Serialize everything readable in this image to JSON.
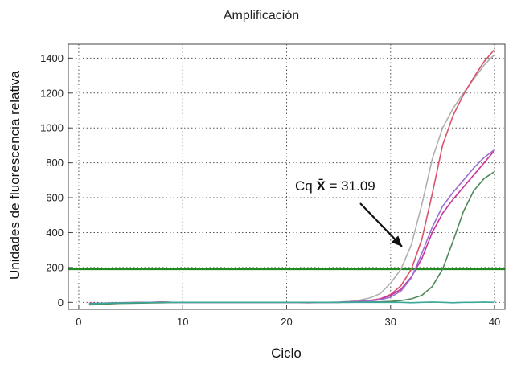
{
  "chart_data": {
    "type": "line",
    "title": "Amplificación",
    "xlabel": "Ciclo",
    "ylabel": "Unidades de fluorescencia relativa",
    "xlim": [
      -1,
      41
    ],
    "ylim": [
      -40,
      1480
    ],
    "xticks": [
      0,
      10,
      20,
      30,
      40
    ],
    "yticks": [
      0,
      200,
      400,
      600,
      800,
      1000,
      1200,
      1400
    ],
    "grid": true,
    "legend": "none",
    "threshold": {
      "value": 190,
      "color": "#1e8c1e"
    },
    "annotation": {
      "text_prefix": "Cq ",
      "text_symbol": "X̄",
      "text_value": " = 31.09",
      "point_x": 31.1,
      "point_y": 320
    },
    "series": [
      {
        "color": "#b0b0b0",
        "x": [
          1,
          2,
          3,
          4,
          5,
          6,
          7,
          8,
          9,
          10,
          11,
          12,
          13,
          14,
          15,
          16,
          17,
          18,
          19,
          20,
          21,
          22,
          23,
          24,
          25,
          26,
          27,
          28,
          29,
          30,
          31,
          32,
          33,
          34,
          35,
          36,
          37,
          38,
          39,
          40
        ],
        "y": [
          -15,
          -12,
          -8,
          -5,
          -4,
          -3,
          -2,
          -1,
          0,
          0,
          0,
          0,
          0,
          0,
          0,
          0,
          0,
          0,
          0,
          0,
          0,
          0,
          0,
          0,
          2,
          5,
          12,
          25,
          50,
          110,
          190,
          330,
          560,
          820,
          1000,
          1110,
          1200,
          1280,
          1360,
          1420
        ]
      },
      {
        "color": "#d9546a",
        "x": [
          1,
          2,
          3,
          4,
          5,
          6,
          7,
          8,
          9,
          10,
          11,
          12,
          13,
          14,
          15,
          16,
          17,
          18,
          19,
          20,
          21,
          22,
          23,
          24,
          25,
          26,
          27,
          28,
          29,
          30,
          31,
          32,
          33,
          34,
          35,
          36,
          37,
          38,
          39,
          40
        ],
        "y": [
          -10,
          -7,
          -5,
          -3,
          -2,
          -1,
          0,
          2,
          0,
          0,
          0,
          0,
          0,
          0,
          0,
          0,
          0,
          0,
          0,
          0,
          0,
          0,
          0,
          0,
          0,
          2,
          5,
          10,
          20,
          45,
          95,
          190,
          360,
          620,
          900,
          1070,
          1190,
          1290,
          1380,
          1450
        ]
      },
      {
        "color": "#cc3399",
        "x": [
          1,
          2,
          3,
          4,
          5,
          6,
          7,
          8,
          9,
          10,
          11,
          12,
          13,
          14,
          15,
          16,
          17,
          18,
          19,
          20,
          21,
          22,
          23,
          24,
          25,
          26,
          27,
          28,
          29,
          30,
          31,
          32,
          33,
          34,
          35,
          36,
          37,
          38,
          39,
          40
        ],
        "y": [
          -5,
          -5,
          -3,
          -2,
          -1,
          0,
          0,
          2,
          0,
          0,
          0,
          0,
          0,
          0,
          0,
          0,
          0,
          0,
          0,
          0,
          0,
          -2,
          0,
          0,
          0,
          2,
          5,
          10,
          20,
          40,
          75,
          145,
          250,
          400,
          510,
          590,
          660,
          730,
          800,
          870
        ]
      },
      {
        "color": "#9b6fd1",
        "x": [
          1,
          2,
          3,
          4,
          5,
          6,
          7,
          8,
          9,
          10,
          11,
          12,
          13,
          14,
          15,
          16,
          17,
          18,
          19,
          20,
          21,
          22,
          23,
          24,
          25,
          26,
          27,
          28,
          29,
          30,
          31,
          32,
          33,
          34,
          35,
          36,
          37,
          38,
          39,
          40
        ],
        "y": [
          -8,
          -6,
          -4,
          -3,
          -2,
          -1,
          0,
          0,
          0,
          0,
          0,
          0,
          0,
          0,
          0,
          0,
          0,
          0,
          0,
          0,
          0,
          0,
          0,
          0,
          0,
          2,
          4,
          8,
          15,
          30,
          65,
          140,
          280,
          430,
          550,
          630,
          700,
          770,
          830,
          875
        ]
      },
      {
        "color": "#4e8a57",
        "x": [
          1,
          2,
          3,
          4,
          5,
          6,
          7,
          8,
          9,
          10,
          11,
          12,
          13,
          14,
          15,
          16,
          17,
          18,
          19,
          20,
          21,
          22,
          23,
          24,
          25,
          26,
          27,
          28,
          29,
          30,
          31,
          32,
          33,
          34,
          35,
          36,
          37,
          38,
          39,
          40
        ],
        "y": [
          -12,
          -10,
          -8,
          -6,
          -5,
          -4,
          -3,
          -2,
          -1,
          0,
          0,
          0,
          0,
          0,
          0,
          0,
          0,
          0,
          0,
          0,
          0,
          0,
          0,
          0,
          0,
          0,
          1,
          2,
          3,
          5,
          10,
          20,
          40,
          90,
          190,
          350,
          520,
          640,
          710,
          750
        ]
      },
      {
        "color": "#3aa89a",
        "x": [
          1,
          2,
          3,
          4,
          5,
          6,
          7,
          8,
          9,
          10,
          11,
          12,
          13,
          14,
          15,
          16,
          17,
          18,
          19,
          20,
          21,
          22,
          23,
          24,
          25,
          26,
          27,
          28,
          29,
          30,
          31,
          32,
          33,
          34,
          35,
          36,
          37,
          38,
          39,
          40
        ],
        "y": [
          -8,
          -6,
          -4,
          -3,
          -2,
          -1,
          -1,
          0,
          0,
          0,
          0,
          0,
          0,
          0,
          0,
          0,
          0,
          0,
          0,
          0,
          0,
          0,
          0,
          0,
          0,
          0,
          0,
          0,
          0,
          0,
          0,
          -2,
          0,
          2,
          0,
          -2,
          0,
          0,
          2,
          0
        ]
      }
    ]
  }
}
